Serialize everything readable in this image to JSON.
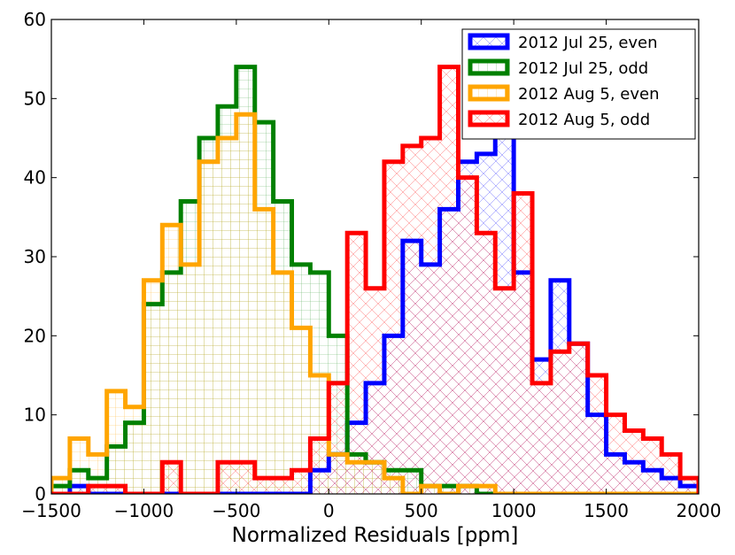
{
  "chart_data": {
    "type": "histogram",
    "title": "",
    "xlabel": "Normalized Residuals [ppm]",
    "ylabel": "",
    "xlim": [
      -1500,
      2000
    ],
    "ylim": [
      0,
      60
    ],
    "xticks": [
      -1500,
      -1000,
      -500,
      0,
      500,
      1000,
      1500,
      2000
    ],
    "xtick_labels": [
      "−1500",
      "−1000",
      "−500",
      "0",
      "500",
      "1000",
      "1500",
      "2000"
    ],
    "yticks": [
      0,
      10,
      20,
      30,
      40,
      50,
      60
    ],
    "ytick_labels": [
      "0",
      "10",
      "20",
      "30",
      "40",
      "50",
      "60"
    ],
    "legend_position": "top-right",
    "bin_start": -1500,
    "bin_width": 100,
    "series": [
      {
        "name": "2012 Jul 25, even",
        "color": "#0000ff",
        "hatch": "cross",
        "values": [
          0,
          1,
          0,
          0,
          0,
          0,
          0,
          0,
          0,
          0,
          0,
          0,
          0,
          0,
          3,
          5,
          9,
          14,
          20,
          32,
          29,
          36,
          42,
          43,
          46,
          28,
          17,
          27,
          19,
          10,
          5,
          4,
          3,
          2,
          1
        ]
      },
      {
        "name": "2012 Jul 25, odd",
        "color": "#008000",
        "hatch": "grid",
        "values": [
          1,
          3,
          2,
          6,
          9,
          24,
          28,
          37,
          45,
          49,
          54,
          47,
          37,
          29,
          28,
          20,
          5,
          4,
          3,
          3,
          1,
          1,
          1,
          0,
          0,
          0,
          0,
          0,
          0,
          0,
          0,
          0,
          0,
          0,
          0
        ]
      },
      {
        "name": "2012 Aug 5, even",
        "color": "#ffa500",
        "hatch": "grid",
        "values": [
          2,
          7,
          5,
          13,
          11,
          27,
          34,
          29,
          42,
          45,
          48,
          36,
          28,
          21,
          15,
          5,
          4,
          4,
          2,
          0,
          1,
          0,
          1,
          1,
          0,
          0,
          0,
          0,
          0,
          0,
          0,
          0,
          0,
          0,
          0
        ]
      },
      {
        "name": "2012 Aug 5, odd",
        "color": "#ff0000",
        "hatch": "cross",
        "values": [
          0,
          0,
          1,
          1,
          0,
          0,
          4,
          0,
          0,
          4,
          4,
          2,
          2,
          3,
          7,
          14,
          33,
          26,
          42,
          44,
          45,
          54,
          40,
          33,
          26,
          38,
          14,
          18,
          19,
          15,
          10,
          8,
          7,
          5,
          2
        ]
      }
    ]
  }
}
